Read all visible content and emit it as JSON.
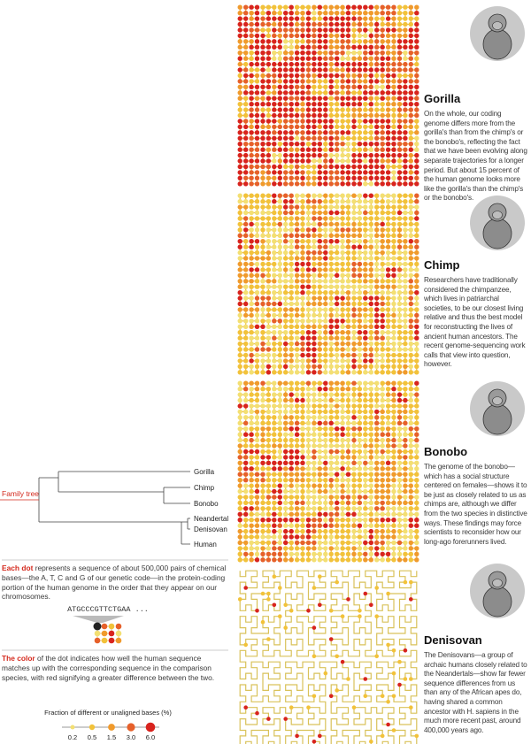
{
  "panels": [
    {
      "name": "Gorilla",
      "text": "On the whole, our coding genome differs more from the gorilla's than from the chimp's or the bonobo's, reflecting the fact that we have been evolving along separate trajectories for a longer period. But about 15 percent of the human genome looks more like the gorilla's than the chimp's or the bonobo's."
    },
    {
      "name": "Chimp",
      "text": "Researchers have traditionally considered the chimpanzee, which lives in patriarchal societies, to be our closest living relative and thus the best model for reconstructing the lives of ancient human ancestors. The recent genome-sequencing work calls that view into question, however."
    },
    {
      "name": "Bonobo",
      "text": "The genome of the bonobo—which has a social structure centered on females—shows it to be just as closely related to us as chimps are, although we differ from the two species in distinctive ways. These findings may force scientists to reconsider how our long-ago forerunners lived."
    },
    {
      "name": "Denisovan",
      "text": "The Denisovans—a group of archaic humans closely related to the Neandertals—show far fewer sequence differences from us than any of the African apes do, having shared a common ancestor with H. sapiens in the much more recent past, around 400,000 years ago."
    }
  ],
  "family_tree": {
    "title": "Family tree",
    "leaves": [
      "Gorilla",
      "Chimp",
      "Bonobo",
      "Neandertal",
      "Denisovan",
      "Human"
    ]
  },
  "notes": [
    {
      "lead": "Each dot",
      "text": "represents a sequence of about 500,000 pairs of chemical bases—the A, T, C and G of our genetic code—in the protein-coding portion of the human genome in the order that they appear on our chromosomes."
    },
    {
      "lead": "The color",
      "text": "of the dot indicates how well the human sequence matches up with the corresponding sequence in the comparison species, with red signifying a greater difference between the two."
    }
  ],
  "sequence": "ATGCCCGTTCTGAA ...",
  "legend": {
    "title": "Fraction of different or unaligned bases (%)",
    "ticks": [
      "0.2",
      "0.5",
      "1.5",
      "3.0",
      "6.0"
    ]
  }
}
